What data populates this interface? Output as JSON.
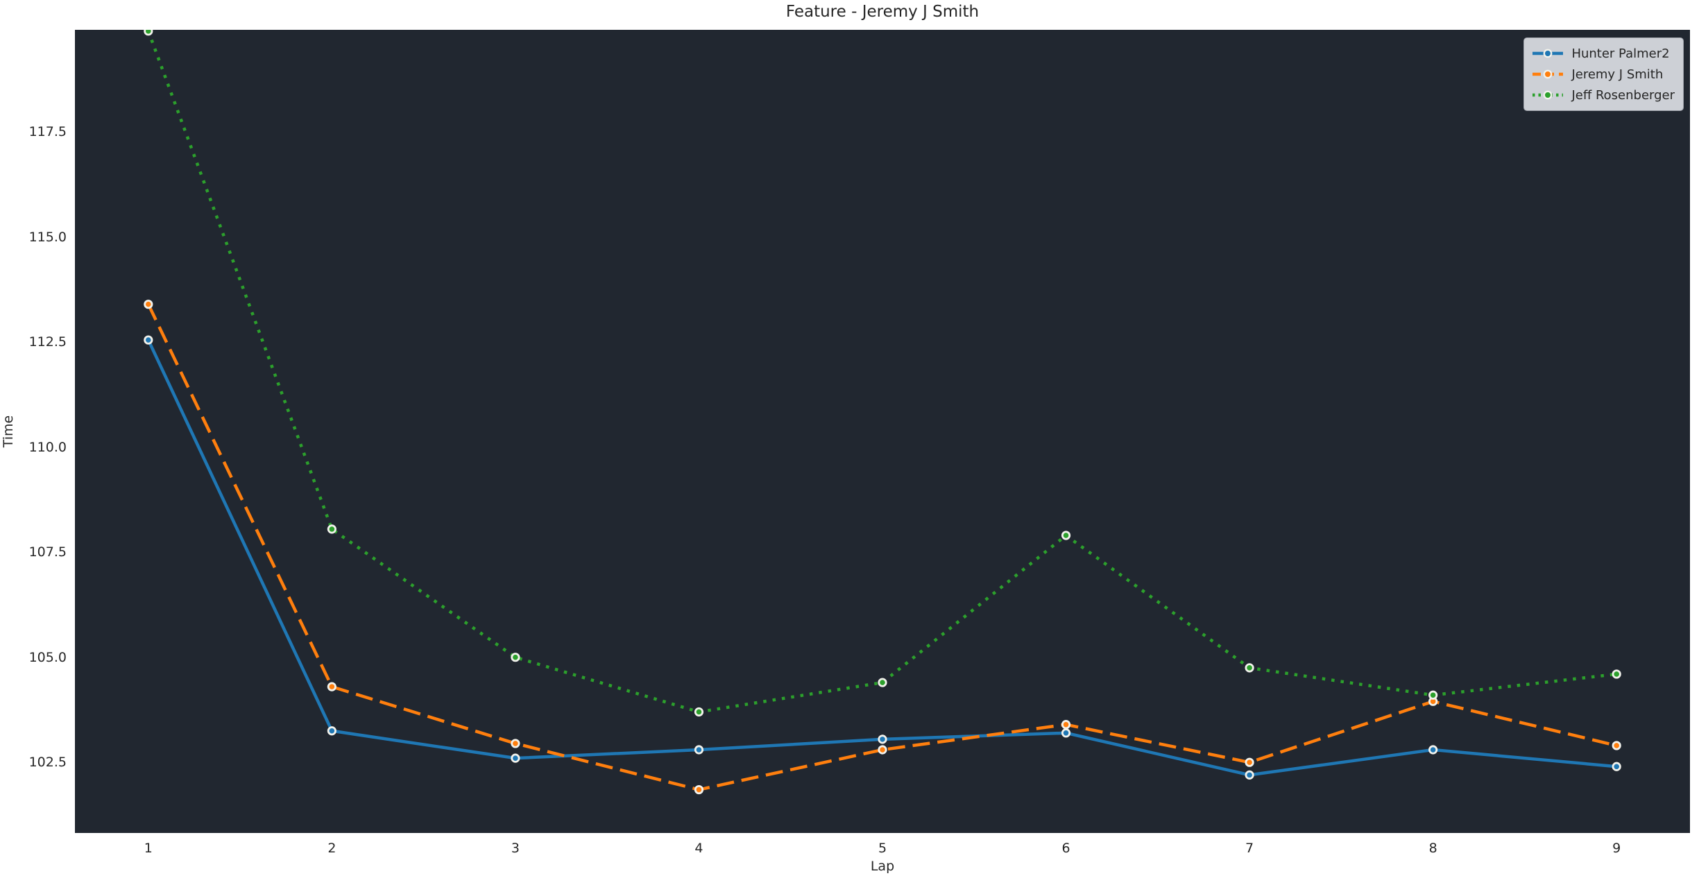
{
  "title": "Feature - Jeremy J Smith",
  "axes": {
    "x_label": "Lap",
    "y_label": "Time",
    "x_tick_labels": [
      "1",
      "2",
      "3",
      "4",
      "5",
      "6",
      "7",
      "8",
      "9"
    ],
    "y_tick_labels": [
      "117.5",
      "115.0",
      "112.5",
      "110.0",
      "107.5",
      "105.0",
      "102.5"
    ],
    "y_tick_values": [
      117.5,
      115.0,
      112.5,
      110.0,
      107.5,
      105.0,
      102.5
    ]
  },
  "legend": {
    "position": "upper right",
    "items": [
      {
        "label": "Hunter Palmer2",
        "color": "#1f77b4",
        "linestyle": "solid"
      },
      {
        "label": "Jeremy J Smith",
        "color": "#ff7f0e",
        "linestyle": "dashed"
      },
      {
        "label": "Jeff Rosenberger",
        "color": "#2ca02c",
        "linestyle": "dotted"
      }
    ]
  },
  "colors": {
    "figure_bg": "#ffffff",
    "plot_bg": "#212730",
    "text": "#262626",
    "legend_bg": "#cdd0d6",
    "legend_border": "#a0a4ac",
    "marker_edge": "#f2f2ec",
    "series_blue": "#1f77b4",
    "series_orange": "#ff7f0e",
    "series_green": "#2ca02c"
  },
  "chart_data": {
    "type": "line",
    "title": "Feature - Jeremy J Smith",
    "xlabel": "Lap",
    "ylabel": "Time",
    "x": [
      1,
      2,
      3,
      4,
      5,
      6,
      7,
      8,
      9
    ],
    "series": [
      {
        "name": "Hunter Palmer2",
        "color": "#1f77b4",
        "linestyle": "solid",
        "marker": "o",
        "values": [
          112.55,
          103.25,
          102.6,
          102.8,
          103.05,
          103.2,
          102.2,
          102.8,
          102.4
        ]
      },
      {
        "name": "Jeremy J Smith",
        "color": "#ff7f0e",
        "linestyle": "dashed",
        "marker": "o",
        "values": [
          113.4,
          104.3,
          102.95,
          101.85,
          102.8,
          103.4,
          102.5,
          103.95,
          102.9
        ]
      },
      {
        "name": "Jeff Rosenberger",
        "color": "#2ca02c",
        "linestyle": "dotted",
        "marker": "o",
        "values": [
          119.9,
          108.05,
          105.0,
          103.7,
          104.4,
          107.9,
          104.75,
          104.1,
          104.6
        ]
      }
    ],
    "xlim": [
      0.6,
      9.4
    ],
    "ylim": [
      100.82,
      119.93
    ],
    "grid": false,
    "legend_position": "upper right"
  }
}
